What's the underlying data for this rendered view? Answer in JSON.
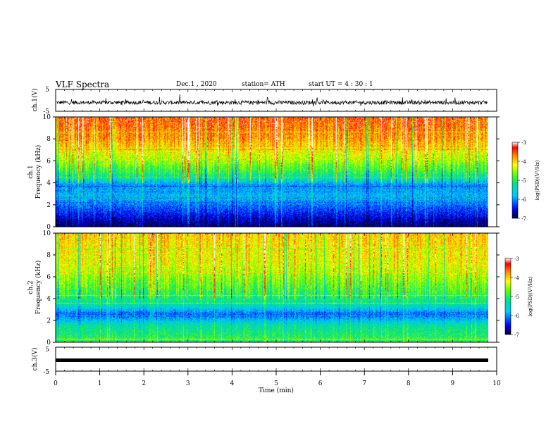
{
  "header": {
    "title": "VLF Spectra",
    "date": "Dec.1 , 2020",
    "station": "station= ATH",
    "start": "start UT = 4 : 30 : 1"
  },
  "colors": {
    "scale": [
      "#5a0099",
      "#0000ff",
      "#00c8ff",
      "#00e0a0",
      "#64ff00",
      "#ffff00",
      "#ff8000",
      "#ff0000",
      "#ffffff"
    ]
  },
  "chart_data": [
    {
      "type": "line",
      "ylabel": "ch.1(V)",
      "ylim": [
        -5,
        5
      ],
      "yticks": [
        "5",
        "-5"
      ],
      "xlim": [
        0,
        9.8
      ],
      "description_values": {
        "baseline": -1.0,
        "amplitude": 1.8
      }
    },
    {
      "type": "heatmap",
      "ylabel_top": "ch.1",
      "ylabel": "Frequency (kHz)",
      "xlim": [
        0,
        9.8
      ],
      "ylim": [
        0,
        10
      ],
      "yticks": [
        "0",
        "2",
        "4",
        "6",
        "8",
        "10"
      ],
      "colorbar": {
        "label": "log(PSD)(V²/Hz)",
        "ticks": [
          "-3",
          "-4",
          "-5",
          "-6",
          "-7"
        ],
        "range": [
          -7,
          -3
        ]
      },
      "profile": [
        {
          "f": 0.3,
          "level": -6.8
        },
        {
          "f": 1.5,
          "level": -6.3
        },
        {
          "f": 2.8,
          "level": -5.8
        },
        {
          "f": 3.8,
          "level": -6.0
        },
        {
          "f": 4.5,
          "level": -5.2
        },
        {
          "f": 6.0,
          "level": -4.5
        },
        {
          "f": 8.0,
          "level": -3.8
        },
        {
          "f": 10.0,
          "level": -3.5
        }
      ]
    },
    {
      "type": "heatmap",
      "ylabel_top": "ch.2",
      "ylabel": "Frequency (kHz)",
      "xlim": [
        0,
        9.8
      ],
      "ylim": [
        0,
        10
      ],
      "yticks": [
        "0",
        "2",
        "4",
        "6",
        "8",
        "10"
      ],
      "colorbar": {
        "label": "log(PSD)(V²/Hz)",
        "ticks": [
          "-3",
          "-4",
          "-5",
          "-6",
          "-7"
        ],
        "range": [
          -7,
          -3
        ]
      },
      "profile": [
        {
          "f": 0.3,
          "level": -5.0
        },
        {
          "f": 1.5,
          "level": -5.3
        },
        {
          "f": 2.5,
          "level": -6.2
        },
        {
          "f": 3.5,
          "level": -5.3
        },
        {
          "f": 5.0,
          "level": -4.8
        },
        {
          "f": 7.0,
          "level": -4.3
        },
        {
          "f": 10.0,
          "level": -4.0
        }
      ]
    },
    {
      "type": "line",
      "ylabel": "ch.3(V)",
      "ylim": [
        -5,
        5
      ],
      "yticks": [
        "5",
        "0",
        "-5"
      ],
      "xlim": [
        0,
        9.8
      ],
      "xlabel": "Time (min)",
      "xticks": [
        "0",
        "1",
        "2",
        "3",
        "4",
        "5",
        "6",
        "7",
        "8",
        "9",
        "10"
      ],
      "x_range": [
        0,
        10
      ],
      "description_values": {
        "baseline": 0.5,
        "amplitude": 0.3
      }
    }
  ]
}
